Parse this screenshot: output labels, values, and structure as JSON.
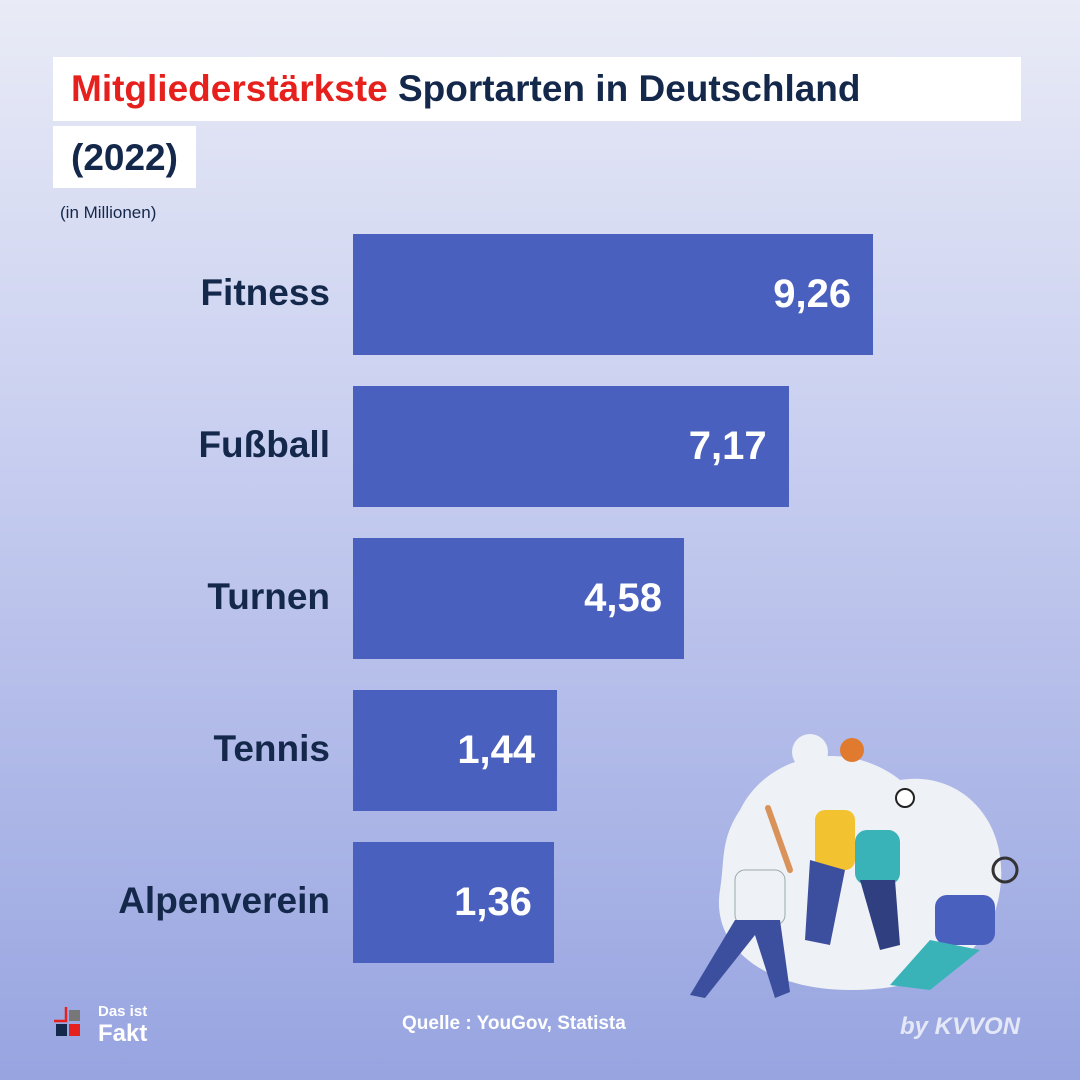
{
  "title": {
    "highlight": "Mitgliederstärkste",
    "rest": " Sportarten in Deutschland",
    "line2": "(2022)"
  },
  "unit": "(in Millionen)",
  "chart_data": {
    "type": "bar",
    "orientation": "horizontal",
    "title": "Mitgliederstärkste Sportarten in Deutschland (2022)",
    "ylabel": "(in Millionen)",
    "categories": [
      "Fitness",
      "Fußball",
      "Turnen",
      "Tennis",
      "Alpenverein"
    ],
    "values": [
      9.26,
      7.17,
      4.58,
      1.44,
      1.36
    ],
    "value_labels": [
      "9,26",
      "7,17",
      "4,58",
      "1,44",
      "1,36"
    ],
    "grid": false
  },
  "source": "Quelle : YouGov, Statista",
  "logo": {
    "line1": "Das ist",
    "line2": "Fakt"
  },
  "byline": "by KVVON",
  "colors": {
    "bar": "#4a60be",
    "accent": "#e6201c",
    "text": "#14284b"
  }
}
